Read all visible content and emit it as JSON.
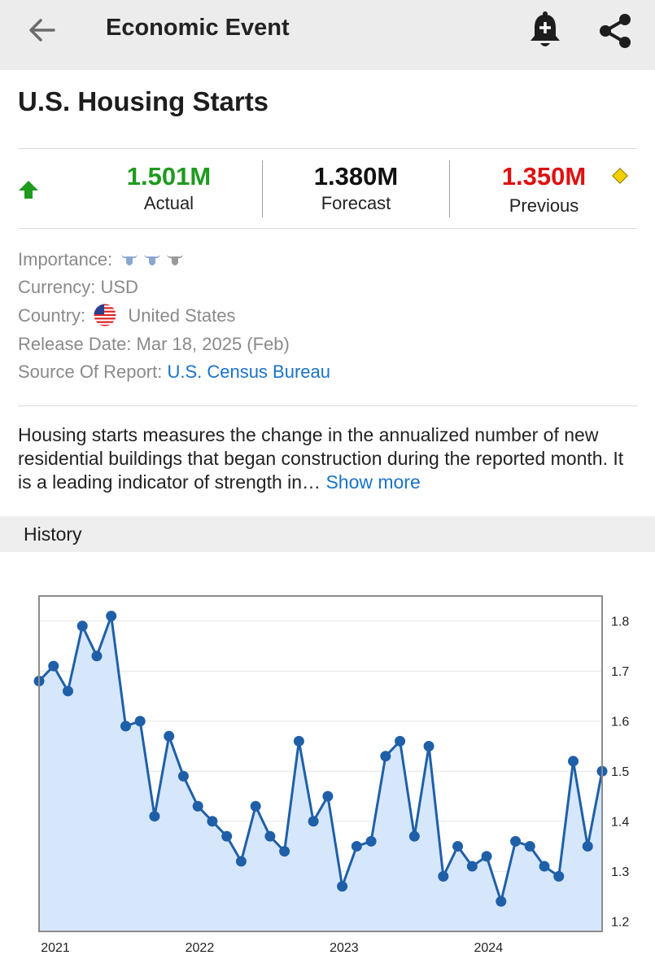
{
  "header": {
    "title": "Economic Event",
    "back_icon": "arrow-left-icon",
    "bell_icon": "bell-plus-icon",
    "share_icon": "share-icon"
  },
  "event": {
    "title": "U.S. Housing Starts",
    "direction_icon": "arrow-up-icon",
    "actual": {
      "value": "1.501M",
      "label": "Actual",
      "color": "#1f9a1f"
    },
    "forecast": {
      "value": "1.380M",
      "label": "Forecast",
      "color": "#111111"
    },
    "previous": {
      "value": "1.350M",
      "label": "Previous",
      "color": "#e01010"
    },
    "revision_icon": "diamond-icon"
  },
  "info": {
    "importance_label": "Importance:",
    "importance_level": 2,
    "importance_max": 3,
    "currency_label": "Currency:",
    "currency_value": "USD",
    "country_label": "Country:",
    "country_flag_icon": "us-flag-icon",
    "country_value": "United States",
    "release_label": "Release Date:",
    "release_value": "Mar 18, 2025 (Feb)",
    "source_label": "Source Of Report:",
    "source_value": "U.S. Census Bureau"
  },
  "description": {
    "text": "Housing starts measures the change in the annualized number of new residential buildings that began construction during the reported month. It is a leading indicator of strength in…",
    "show_more": "Show more"
  },
  "history": {
    "label": "History"
  },
  "chart_data": {
    "type": "area",
    "y_ticks": [
      "1.2",
      "1.3",
      "1.4",
      "1.5",
      "1.6",
      "1.7",
      "1.8"
    ],
    "ylim": [
      1.18,
      1.85
    ],
    "x_ticks": [
      {
        "label": "2021",
        "index": 0
      },
      {
        "label": "2022",
        "index": 10
      },
      {
        "label": "2023",
        "index": 20
      },
      {
        "label": "2024",
        "index": 30
      }
    ],
    "values": [
      1.68,
      1.71,
      1.66,
      1.79,
      1.73,
      1.81,
      1.59,
      1.6,
      1.41,
      1.57,
      1.49,
      1.43,
      1.4,
      1.37,
      1.32,
      1.43,
      1.37,
      1.34,
      1.56,
      1.4,
      1.45,
      1.27,
      1.35,
      1.36,
      1.53,
      1.56,
      1.37,
      1.55,
      1.29,
      1.35,
      1.31,
      1.33,
      1.24,
      1.36,
      1.35,
      1.31,
      1.29,
      1.52,
      1.35,
      1.5
    ],
    "line_color": "#1f5fa8",
    "fill_color": "#d6e7fb"
  }
}
